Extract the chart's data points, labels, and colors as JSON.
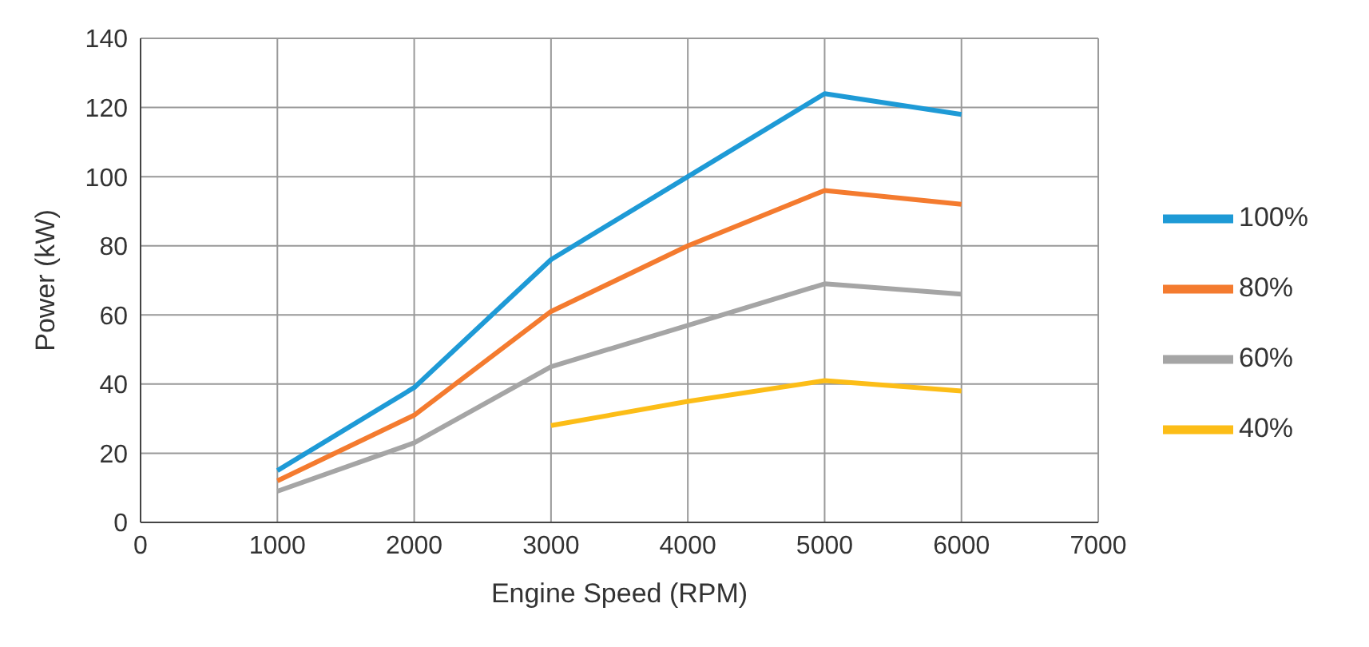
{
  "chart_data": {
    "type": "line",
    "xlabel": "Engine Speed (RPM)",
    "ylabel": "Power (kW)",
    "x": [
      1000,
      2000,
      3000,
      4000,
      5000,
      6000
    ],
    "series": [
      {
        "name": "100%",
        "color": "#1e9ad6",
        "values": [
          15,
          39,
          76,
          100,
          124,
          118
        ]
      },
      {
        "name": "80%",
        "color": "#f47b2f",
        "values": [
          12,
          31,
          61,
          80,
          96,
          92
        ]
      },
      {
        "name": "60%",
        "color": "#a5a5a5",
        "values": [
          9,
          23,
          45,
          57,
          69,
          66
        ]
      },
      {
        "name": "40%",
        "color": "#fcbd17",
        "values": [
          null,
          null,
          28,
          35,
          41,
          38
        ]
      }
    ],
    "xlim": [
      0,
      7000
    ],
    "xticks": [
      0,
      1000,
      2000,
      3000,
      4000,
      5000,
      6000,
      7000
    ],
    "ylim": [
      0,
      140
    ],
    "yticks": [
      0,
      20,
      40,
      60,
      80,
      100,
      120,
      140
    ],
    "grid": true,
    "legend": "right",
    "marker": "none",
    "line_style": "solid"
  }
}
